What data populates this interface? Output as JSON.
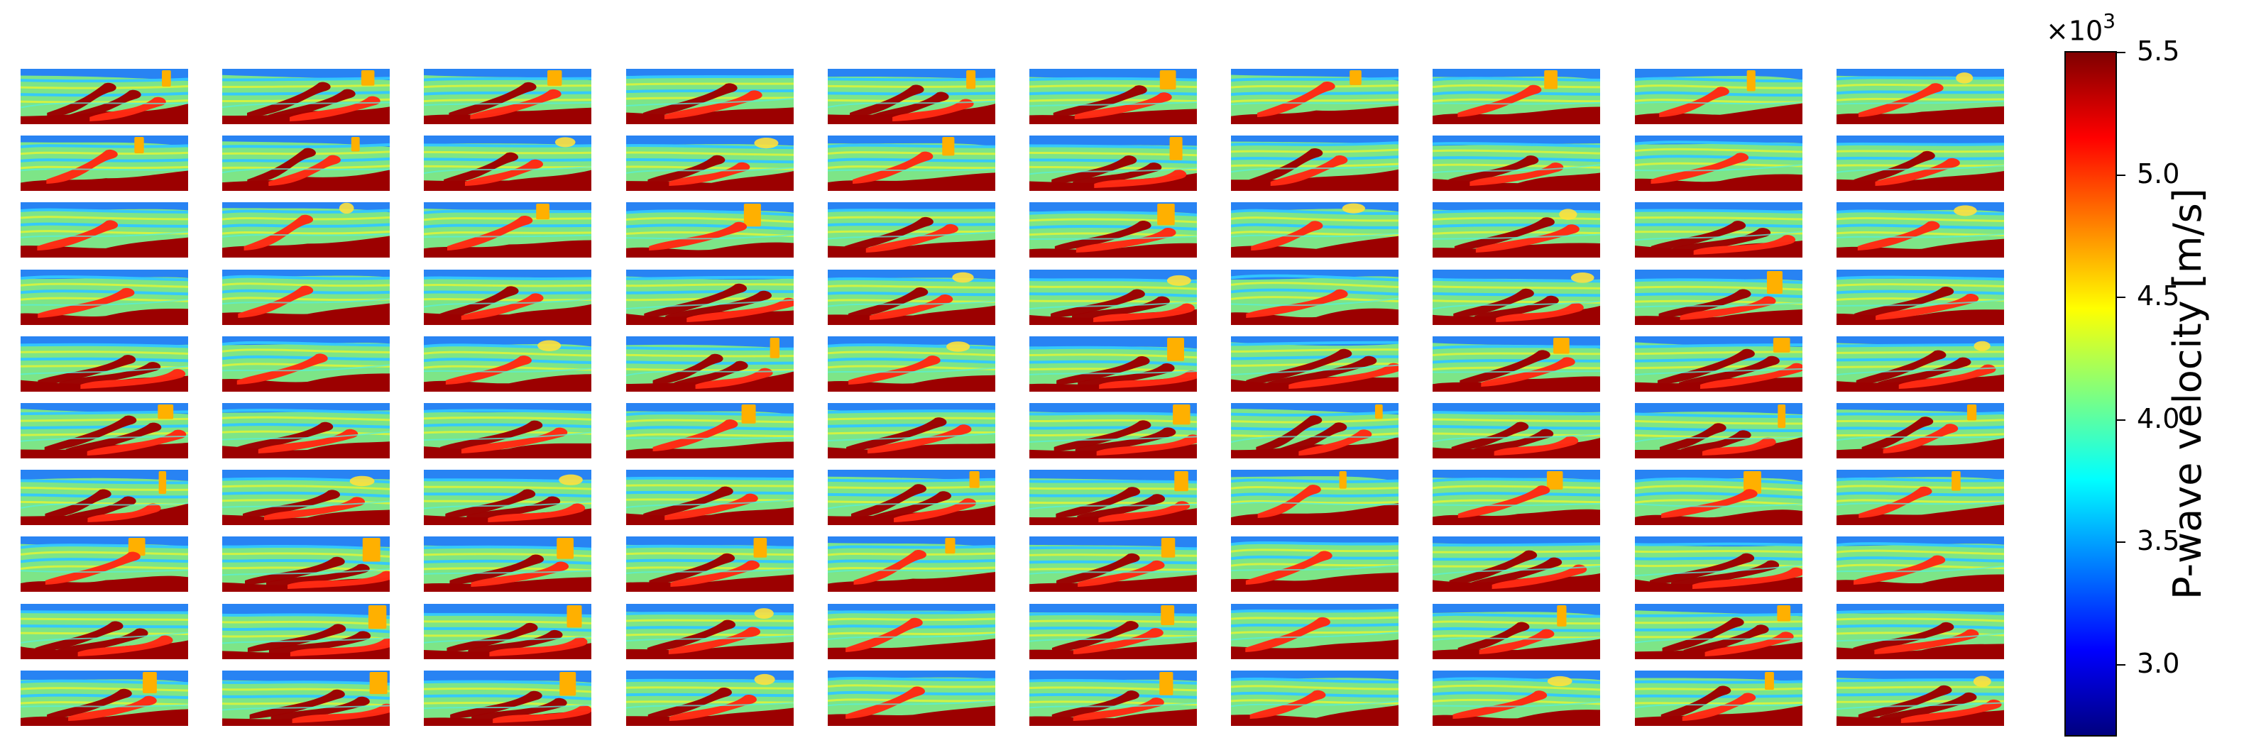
{
  "colorbar": {
    "label": "P-wave velocity [m/s]",
    "exponent_prefix": "×10",
    "exponent_power": "3",
    "min": 2.7,
    "max": 5.5,
    "ticks": [
      "5.5",
      "5.0",
      "4.5",
      "4.0",
      "3.5",
      "3.0"
    ],
    "colormap_stops": [
      "#00007f",
      "#0000ff",
      "#007fff",
      "#00ffff",
      "#7fff7f",
      "#ffff00",
      "#ff7f00",
      "#ff0000",
      "#7f0000"
    ]
  },
  "tiles": {
    "rows": 10,
    "cols": 10,
    "palette": {
      "background": "#7de587",
      "band_light": "#d6f23f",
      "band_blue": "#32c7ff",
      "surface_blue": "#1f78ff",
      "deep_red": "#9c0000",
      "bright_red": "#ff2a12",
      "orange": "#ffb000",
      "yellow": "#ffe13b",
      "cyan": "#58efd8"
    }
  }
}
